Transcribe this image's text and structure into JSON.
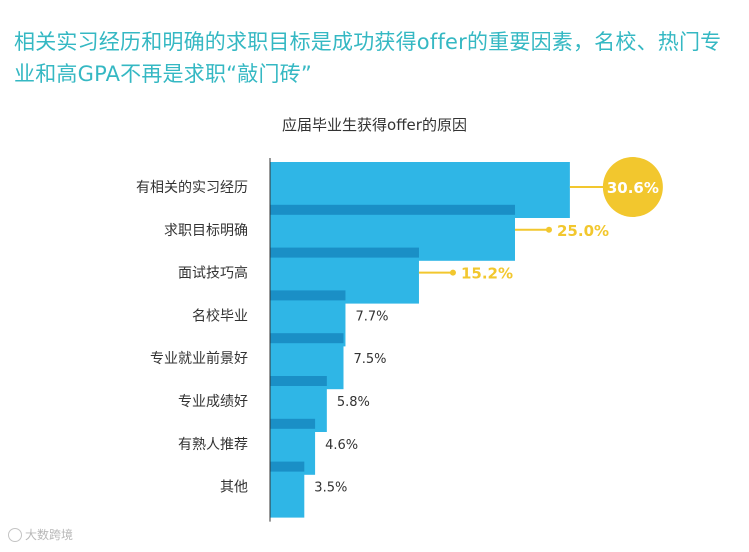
{
  "headline": "相关实习经历和明确的求职目标是成功获得offer的重要因素，名校、热门专业和高GPA不再是求职“敲门砖”",
  "watermark": "大数跨境",
  "colors": {
    "headline": "#35b8c3",
    "bar": "#2fb6e6",
    "bar_shadow": "#1a8fc6",
    "highlight": "#f2c72e",
    "axis": "#333333"
  },
  "chart_data": {
    "type": "bar",
    "orientation": "horizontal",
    "title": "应届毕业生获得offer的原因",
    "categories": [
      "有相关的实习经历",
      "求职目标明确",
      "面试技巧高",
      "名校毕业",
      "专业就业前景好",
      "专业成绩好",
      "有熟人推荐",
      "其他"
    ],
    "values": [
      30.6,
      25.0,
      15.2,
      7.7,
      7.5,
      5.8,
      4.6,
      3.5
    ],
    "value_labels": [
      "30.6%",
      "25.0%",
      "15.2%",
      "7.7%",
      "7.5%",
      "5.8%",
      "4.6%",
      "3.5%"
    ],
    "highlighted": [
      0,
      1,
      2
    ],
    "unit": "%",
    "grid": false,
    "legend": "none"
  }
}
